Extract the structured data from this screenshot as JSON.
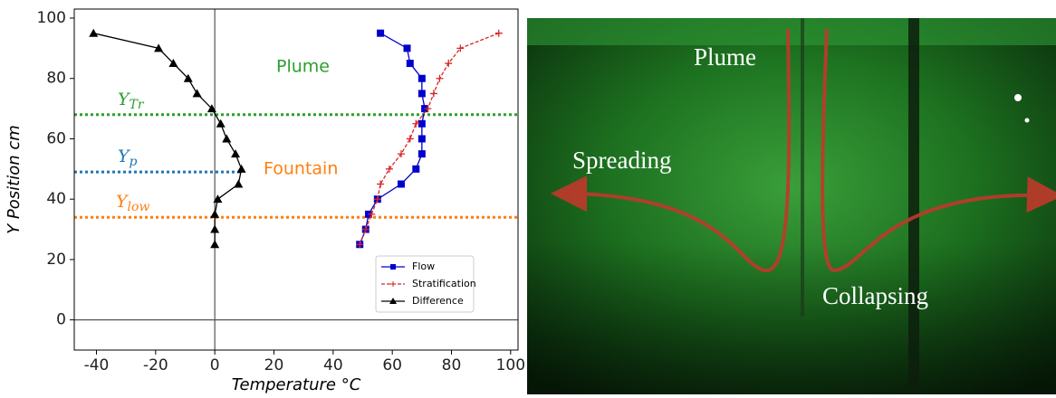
{
  "chart_data": {
    "type": "line",
    "xlabel": "Temperature °C",
    "ylabel": "Y Position cm",
    "xlim": [
      -47.5,
      102.5
    ],
    "ylim": [
      -10,
      103
    ],
    "xticks": [
      -40,
      -20,
      0,
      20,
      40,
      60,
      80,
      100
    ],
    "yticks": [
      0,
      20,
      40,
      60,
      80,
      100
    ],
    "y": [
      95,
      90,
      85,
      80,
      75,
      70,
      65,
      60,
      55,
      50,
      45,
      40,
      35,
      30,
      25
    ],
    "series": [
      {
        "name": "Flow",
        "color": "#0000cc",
        "marker": "square",
        "dash": false,
        "values": [
          56,
          65,
          66,
          70,
          70,
          71,
          70,
          70,
          70,
          68,
          63,
          55,
          52,
          51,
          49
        ]
      },
      {
        "name": "Stratification",
        "color": "#d62728",
        "marker": "plus",
        "dash": true,
        "values": [
          96,
          83,
          79,
          76,
          74,
          72,
          68,
          66,
          63,
          59,
          56,
          55,
          53,
          51,
          49
        ]
      },
      {
        "name": "Difference",
        "color": "#000000",
        "marker": "triangle",
        "dash": false,
        "values": [
          -41,
          -19,
          -14,
          -9,
          -6,
          -1,
          2,
          4,
          7,
          9,
          8,
          1,
          0,
          0,
          0
        ]
      }
    ],
    "hlines": [
      {
        "value": 68,
        "label": "Y",
        "sub": "Tr",
        "color": "#2ca02c"
      },
      {
        "value": 49,
        "label": "Y",
        "sub": "p",
        "color": "#1f77b4",
        "x_end": 9
      },
      {
        "value": 34,
        "label": "Y",
        "sub": "low",
        "color": "#ff7f0e"
      }
    ],
    "annotations": [
      {
        "text": "Plume",
        "color": "#2ca02c"
      },
      {
        "text": "Fountain",
        "color": "#ff7f0e"
      }
    ]
  },
  "photo": {
    "labels": [
      "Plume",
      "Spreading",
      "Collapsing"
    ]
  }
}
